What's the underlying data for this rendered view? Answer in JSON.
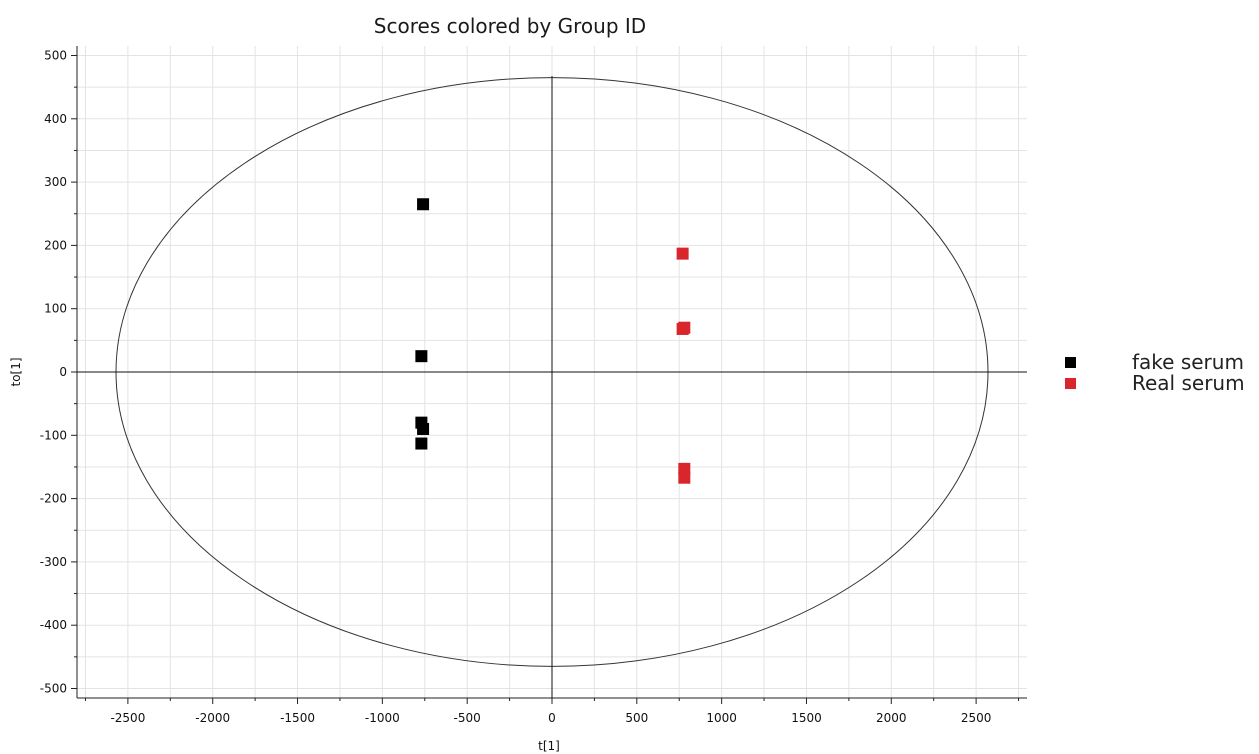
{
  "chart_data": {
    "type": "scatter",
    "title": "Scores colored by Group ID",
    "xlabel": "t[1]",
    "ylabel": "to[1]",
    "xlim": [
      -2800,
      2800
    ],
    "ylim": [
      -515,
      515
    ],
    "xticks": [
      -2500,
      -2000,
      -1500,
      -1000,
      -500,
      0,
      500,
      1000,
      1500,
      2000,
      2500
    ],
    "yticks": [
      500,
      400,
      300,
      200,
      100,
      0,
      -100,
      -200,
      -300,
      -400,
      -500
    ],
    "grid": true,
    "legend_position": "right",
    "ellipse": {
      "cx": 0,
      "cy": 0,
      "rx": 2570,
      "ry": 465
    },
    "series": [
      {
        "name": "fake serum",
        "color": "#000000",
        "marker": "square",
        "points": [
          {
            "x": -760,
            "y": 265
          },
          {
            "x": -770,
            "y": 25
          },
          {
            "x": -770,
            "y": -80
          },
          {
            "x": -760,
            "y": -90
          },
          {
            "x": -770,
            "y": -113
          }
        ]
      },
      {
        "name": "Real serum",
        "color": "#d9262d",
        "marker": "square",
        "points": [
          {
            "x": 770,
            "y": 187
          },
          {
            "x": 770,
            "y": 68
          },
          {
            "x": 780,
            "y": 70
          },
          {
            "x": 780,
            "y": -153
          },
          {
            "x": 780,
            "y": -167
          }
        ]
      }
    ]
  }
}
